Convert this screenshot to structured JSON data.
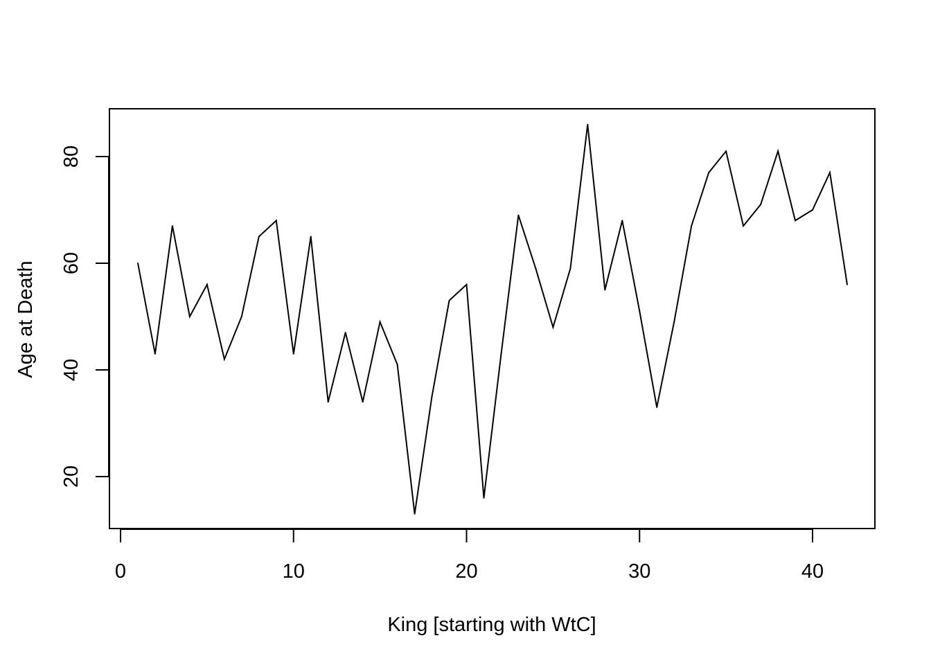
{
  "chart_data": {
    "type": "line",
    "title": "",
    "xlabel": "King [starting with WtC]",
    "ylabel": "Age at Death",
    "xlim": [
      0,
      43
    ],
    "ylim": [
      10,
      89
    ],
    "xticks": [
      0,
      10,
      20,
      30,
      40
    ],
    "yticks": [
      20,
      40,
      60,
      80
    ],
    "grid": false,
    "series": [
      {
        "x": [
          1,
          2,
          3,
          4,
          5,
          6,
          7,
          8,
          9,
          10,
          11,
          12,
          13,
          14,
          15,
          16,
          17,
          18,
          19,
          20,
          21,
          22,
          23,
          24,
          25,
          26,
          27,
          28,
          29,
          30,
          31,
          32,
          33,
          34,
          35,
          36,
          37,
          38,
          39,
          40,
          41,
          42
        ],
        "values": [
          60,
          43,
          67,
          50,
          56,
          42,
          50,
          65,
          68,
          43,
          65,
          34,
          47,
          34,
          49,
          41,
          13,
          35,
          53,
          56,
          16,
          43,
          69,
          59,
          48,
          59,
          86,
          55,
          68,
          51,
          33,
          49,
          67,
          77,
          81,
          67,
          71,
          81,
          68,
          70,
          77,
          56
        ],
        "color": "#000000"
      }
    ]
  }
}
